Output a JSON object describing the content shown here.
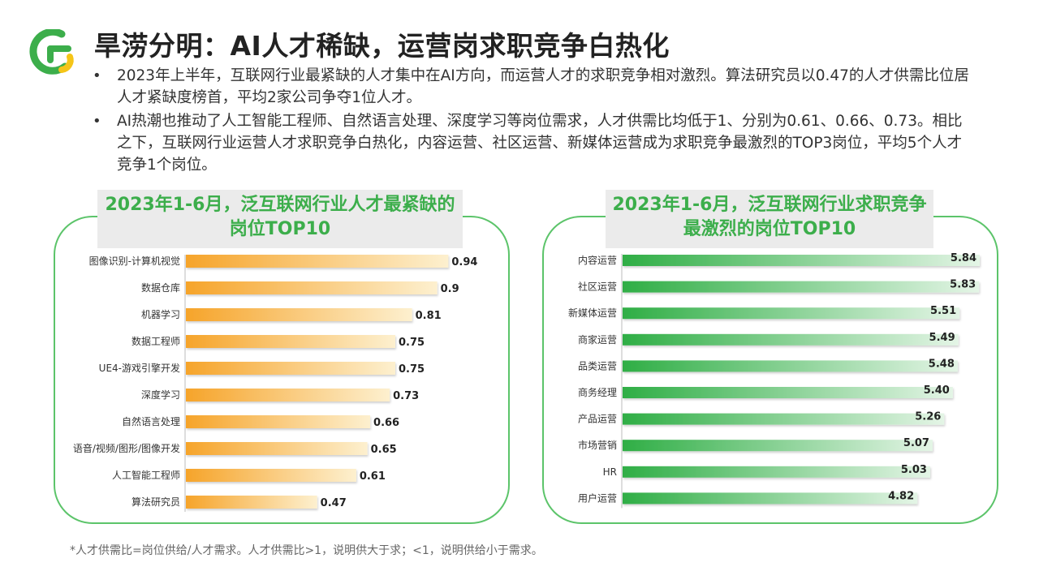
{
  "header": {
    "title": "旱涝分明：AI人才稀缺，运营岗求职竞争白热化"
  },
  "bullets": [
    "2023年上半年，互联网行业最紧缺的人才集中在AI方向，而运营人才的求职竞争相对激烈。算法研究员以0.47的人才供需比位居人才紧缺度榜首，平均2家公司争夺1位人才。",
    "AI热潮也推动了人工智能工程师、自然语言处理、深度学习等岗位需求，人才供需比均低于1、分别为0.61、0.66、0.73。相比之下，互联网行业运营人才求职竞争白热化，内容运营、社区运营、新媒体运营成为求职竞争最激烈的TOP3岗位，平均5个人才竞争1个岗位。"
  ],
  "footnote": "*人才供需比=岗位供给/人才需求。人才供需比>1，说明供大于求；<1，说明供给小于需求。",
  "colors": {
    "brand_green": "#3cae4b",
    "panel_border": "#5cc46a",
    "left_bar_start": "#f6a42a",
    "left_bar_end": "#fdf0cf",
    "right_bar_start": "#2fae45",
    "right_bar_end": "#e4f5e6",
    "logo_yellow": "#f5c518"
  },
  "logo": {
    "icon": "brand-logo-icon"
  },
  "chart_data": [
    {
      "type": "bar",
      "orientation": "horizontal",
      "title": "2023年1-6月，泛互联网行业人才最紧缺的岗位TOP10",
      "categories": [
        "图像识别-计算机视觉",
        "数据仓库",
        "机器学习",
        "数据工程师",
        "UE4-游戏引擎开发",
        "深度学习",
        "自然语言处理",
        "语音/视频/图形/图像开发",
        "人工智能工程师",
        "算法研究员"
      ],
      "values": [
        0.94,
        0.9,
        0.81,
        0.75,
        0.75,
        0.73,
        0.66,
        0.65,
        0.61,
        0.47
      ],
      "value_labels": [
        "0.94",
        "0.9",
        "0.81",
        "0.75",
        "0.75",
        "0.73",
        "0.66",
        "0.65",
        "0.61",
        "0.47"
      ],
      "xlim": [
        0,
        1
      ],
      "grid": false,
      "legend": "none"
    },
    {
      "type": "bar",
      "orientation": "horizontal",
      "title": "2023年1-6月，泛互联网行业求职竞争最激烈的岗位TOP10",
      "categories": [
        "内容运营",
        "社区运营",
        "新媒体运营",
        "商家运营",
        "品类运营",
        "商务经理",
        "产品运营",
        "市场营销",
        "HR",
        "用户运营"
      ],
      "values": [
        5.84,
        5.83,
        5.51,
        5.49,
        5.48,
        5.4,
        5.26,
        5.07,
        5.03,
        4.82
      ],
      "value_labels": [
        "5.84",
        "5.83",
        "5.51",
        "5.49",
        "5.48",
        "5.40",
        "5.26",
        "5.07",
        "5.03",
        "4.82"
      ],
      "xlim": [
        0,
        5.84
      ],
      "grid": false,
      "legend": "none"
    }
  ]
}
